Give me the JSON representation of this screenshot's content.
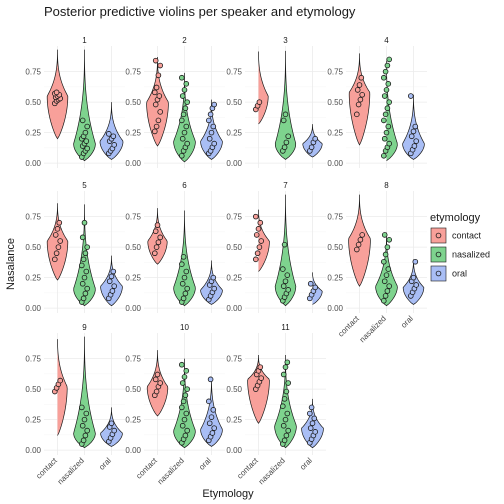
{
  "chart_data": {
    "type": "violin",
    "title": "Posterior predictive violins per speaker and etymology",
    "xlabel": "Etymology",
    "ylabel": "Nasalance",
    "ylim": [
      -0.04,
      0.96
    ],
    "yticks": [
      0.0,
      0.25,
      0.5,
      0.75
    ],
    "ytick_labels": [
      "0.00",
      "0.25",
      "0.50",
      "0.75"
    ],
    "categories": [
      "contact",
      "nasalized",
      "oral"
    ],
    "grid": true,
    "legend": {
      "title": "etymology",
      "position": "right",
      "entries": [
        {
          "label": "contact",
          "fill": "#F8A09A",
          "stroke": "#E0463B"
        },
        {
          "label": "nasalized",
          "fill": "#7ED38E",
          "stroke": "#1F9A3A"
        },
        {
          "label": "oral",
          "fill": "#A9BEF5",
          "stroke": "#4C6FD8"
        }
      ]
    },
    "facets": [
      {
        "label": "1",
        "violins": [
          {
            "category": "contact",
            "min": 0.2,
            "max": 0.93,
            "mode": 0.55,
            "width": 0.85,
            "points": [
              0.49,
              0.51,
              0.52,
              0.53,
              0.54,
              0.55,
              0.56,
              0.57,
              0.58
            ]
          },
          {
            "category": "nasalized",
            "min": 0.02,
            "max": 0.93,
            "mode": 0.16,
            "width": 0.9,
            "points": [
              0.05,
              0.08,
              0.1,
              0.12,
              0.14,
              0.16,
              0.18,
              0.2,
              0.22,
              0.25,
              0.3,
              0.35
            ]
          },
          {
            "category": "oral",
            "min": 0.03,
            "max": 0.5,
            "mode": 0.18,
            "width": 0.95,
            "points": [
              0.08,
              0.1,
              0.12,
              0.15,
              0.18,
              0.2,
              0.22,
              0.24
            ]
          }
        ]
      },
      {
        "label": "2",
        "violins": [
          {
            "category": "contact",
            "min": 0.14,
            "max": 0.87,
            "mode": 0.5,
            "width": 0.9,
            "points": [
              0.26,
              0.3,
              0.35,
              0.42,
              0.48,
              0.52,
              0.55,
              0.58,
              0.62,
              0.72,
              0.8,
              0.84
            ]
          },
          {
            "category": "nasalized",
            "min": 0.01,
            "max": 0.74,
            "mode": 0.18,
            "width": 0.9,
            "points": [
              0.06,
              0.1,
              0.13,
              0.16,
              0.2,
              0.25,
              0.3,
              0.35,
              0.4,
              0.45,
              0.5,
              0.55,
              0.6,
              0.65,
              0.7
            ]
          },
          {
            "category": "oral",
            "min": 0.03,
            "max": 0.52,
            "mode": 0.18,
            "width": 0.9,
            "points": [
              0.08,
              0.1,
              0.13,
              0.16,
              0.2,
              0.25,
              0.3,
              0.35,
              0.4,
              0.45,
              0.48
            ]
          }
        ]
      },
      {
        "label": "3",
        "violins": [
          {
            "category": "contact",
            "min": 0.32,
            "max": 0.93,
            "mode": 0.55,
            "width": 0.8,
            "points": [
              0.44,
              0.47,
              0.5
            ]
          },
          {
            "category": "nasalized",
            "min": 0.03,
            "max": 0.92,
            "mode": 0.16,
            "width": 0.85,
            "points": [
              0.1,
              0.13,
              0.17,
              0.22,
              0.35,
              0.4
            ]
          },
          {
            "category": "oral",
            "min": 0.05,
            "max": 0.32,
            "mode": 0.16,
            "width": 0.8,
            "points": [
              0.1,
              0.13,
              0.17,
              0.2
            ]
          }
        ]
      },
      {
        "label": "4",
        "violins": [
          {
            "category": "contact",
            "min": 0.15,
            "max": 0.9,
            "mode": 0.58,
            "width": 0.85,
            "points": [
              0.4,
              0.48,
              0.52,
              0.56,
              0.6,
              0.64,
              0.7
            ]
          },
          {
            "category": "nasalized",
            "min": 0.02,
            "max": 0.86,
            "mode": 0.16,
            "width": 0.9,
            "points": [
              0.06,
              0.1,
              0.13,
              0.16,
              0.2,
              0.25,
              0.3,
              0.35,
              0.4,
              0.45,
              0.5,
              0.55,
              0.6,
              0.65,
              0.7,
              0.75,
              0.8,
              0.85
            ]
          },
          {
            "category": "oral",
            "min": 0.03,
            "max": 0.56,
            "mode": 0.16,
            "width": 0.9,
            "points": [
              0.08,
              0.11,
              0.14,
              0.18,
              0.22,
              0.26,
              0.3,
              0.55
            ]
          }
        ]
      },
      {
        "label": "5",
        "violins": [
          {
            "category": "contact",
            "min": 0.23,
            "max": 0.86,
            "mode": 0.55,
            "width": 0.85,
            "points": [
              0.4,
              0.45,
              0.5,
              0.55,
              0.6,
              0.65,
              0.7
            ]
          },
          {
            "category": "nasalized",
            "min": 0.02,
            "max": 0.85,
            "mode": 0.16,
            "width": 0.9,
            "points": [
              0.05,
              0.08,
              0.12,
              0.16,
              0.2,
              0.25,
              0.3,
              0.35,
              0.4,
              0.45,
              0.5,
              0.58,
              0.7
            ]
          },
          {
            "category": "oral",
            "min": 0.02,
            "max": 0.43,
            "mode": 0.18,
            "width": 0.9,
            "points": [
              0.08,
              0.11,
              0.14,
              0.18,
              0.22,
              0.26,
              0.3
            ]
          }
        ]
      },
      {
        "label": "6",
        "violins": [
          {
            "category": "contact",
            "min": 0.36,
            "max": 0.82,
            "mode": 0.55,
            "width": 0.8,
            "points": [
              0.45,
              0.5,
              0.54,
              0.58,
              0.63,
              0.68
            ]
          },
          {
            "category": "nasalized",
            "min": 0.02,
            "max": 0.8,
            "mode": 0.17,
            "width": 0.9,
            "points": [
              0.05,
              0.08,
              0.12,
              0.16,
              0.2,
              0.25,
              0.3,
              0.36,
              0.42
            ]
          },
          {
            "category": "oral",
            "min": 0.03,
            "max": 0.39,
            "mode": 0.15,
            "width": 0.9,
            "points": [
              0.07,
              0.1,
              0.13,
              0.16,
              0.19,
              0.22,
              0.25
            ]
          }
        ]
      },
      {
        "label": "7",
        "violins": [
          {
            "category": "contact",
            "min": 0.3,
            "max": 0.82,
            "mode": 0.55,
            "width": 0.9,
            "points": [
              0.4,
              0.45,
              0.5,
              0.55,
              0.6,
              0.65,
              0.7,
              0.75
            ]
          },
          {
            "category": "nasalized",
            "min": 0.02,
            "max": 0.93,
            "mode": 0.18,
            "width": 0.85,
            "points": [
              0.06,
              0.09,
              0.12,
              0.15,
              0.18,
              0.22,
              0.27,
              0.32,
              0.52
            ]
          },
          {
            "category": "oral",
            "min": 0.03,
            "max": 0.3,
            "mode": 0.14,
            "width": 0.8,
            "points": [
              0.08,
              0.11,
              0.14,
              0.17,
              0.2
            ]
          }
        ]
      },
      {
        "label": "8",
        "violins": [
          {
            "category": "contact",
            "min": 0.18,
            "max": 0.93,
            "mode": 0.57,
            "width": 0.9,
            "points": [
              0.48,
              0.52,
              0.56,
              0.6
            ]
          },
          {
            "category": "nasalized",
            "min": 0.02,
            "max": 0.62,
            "mode": 0.18,
            "width": 0.9,
            "points": [
              0.06,
              0.1,
              0.14,
              0.18,
              0.22,
              0.27,
              0.32,
              0.38,
              0.44,
              0.5,
              0.56,
              0.6
            ]
          },
          {
            "category": "oral",
            "min": 0.03,
            "max": 0.4,
            "mode": 0.17,
            "width": 0.85,
            "points": [
              0.1,
              0.13,
              0.16,
              0.19,
              0.22,
              0.25,
              0.38
            ]
          }
        ]
      },
      {
        "label": "9",
        "violins": [
          {
            "category": "contact",
            "min": 0.12,
            "max": 0.93,
            "mode": 0.52,
            "width": 0.8,
            "points": [
              0.48,
              0.51,
              0.54,
              0.57
            ]
          },
          {
            "category": "nasalized",
            "min": 0.02,
            "max": 0.93,
            "mode": 0.14,
            "width": 0.9,
            "points": [
              0.05,
              0.08,
              0.12,
              0.16,
              0.2,
              0.25,
              0.3,
              0.35
            ]
          },
          {
            "category": "oral",
            "min": 0.03,
            "max": 0.35,
            "mode": 0.14,
            "width": 0.9,
            "points": [
              0.07,
              0.1,
              0.13,
              0.16,
              0.19,
              0.22
            ]
          }
        ]
      },
      {
        "label": "10",
        "violins": [
          {
            "category": "contact",
            "min": 0.28,
            "max": 0.82,
            "mode": 0.52,
            "width": 0.85,
            "points": [
              0.45,
              0.48,
              0.52,
              0.55,
              0.58,
              0.62
            ]
          },
          {
            "category": "nasalized",
            "min": 0.02,
            "max": 0.75,
            "mode": 0.16,
            "width": 0.9,
            "points": [
              0.06,
              0.09,
              0.12,
              0.16,
              0.2,
              0.25,
              0.3,
              0.35,
              0.4,
              0.45,
              0.5,
              0.55,
              0.6,
              0.65,
              0.7
            ]
          },
          {
            "category": "oral",
            "min": 0.03,
            "max": 0.6,
            "mode": 0.17,
            "width": 0.9,
            "points": [
              0.08,
              0.11,
              0.14,
              0.18,
              0.22,
              0.27,
              0.33,
              0.4,
              0.58
            ]
          }
        ]
      },
      {
        "label": "11",
        "violins": [
          {
            "category": "contact",
            "min": 0.22,
            "max": 0.78,
            "mode": 0.58,
            "width": 0.9,
            "points": [
              0.5,
              0.53,
              0.56,
              0.59,
              0.62,
              0.65,
              0.68
            ]
          },
          {
            "category": "nasalized",
            "min": 0.02,
            "max": 0.78,
            "mode": 0.2,
            "width": 0.9,
            "points": [
              0.05,
              0.08,
              0.12,
              0.16,
              0.2,
              0.25,
              0.3,
              0.36,
              0.42,
              0.48,
              0.55,
              0.62,
              0.68,
              0.72
            ]
          },
          {
            "category": "oral",
            "min": 0.02,
            "max": 0.42,
            "mode": 0.18,
            "width": 0.9,
            "points": [
              0.06,
              0.09,
              0.12,
              0.15,
              0.18,
              0.22,
              0.26,
              0.3,
              0.35
            ]
          }
        ]
      }
    ]
  }
}
